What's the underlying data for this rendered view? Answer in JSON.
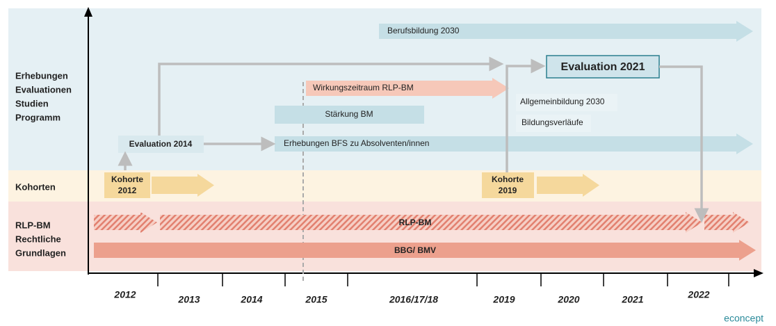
{
  "rows": [
    {
      "lines": [
        "Erhebungen",
        "Evaluationen",
        "Studien",
        "Programm"
      ]
    },
    {
      "lines": [
        "Kohorten"
      ]
    },
    {
      "lines": [
        "RLP-BM",
        "Rechtliche",
        "Grundlagen"
      ]
    }
  ],
  "years": [
    "2012",
    "2013",
    "2014",
    "2015",
    "2016/17/18",
    "2019",
    "2020",
    "2021",
    "2022"
  ],
  "items": {
    "berufsbildung": "Berufsbildung 2030",
    "evaluation_2021": "Evaluation 2021",
    "wirkungszeitraum": "Wirkungszeitraum RLP-BM",
    "allgemeinbildung": "Allgemeinbildung 2030",
    "staerkung": "Stärkung BM",
    "bildungsverlaeufe": "Bildungsverläufe",
    "evaluation_2014": "Evaluation 2014",
    "erhebungen_bfs": "Erhebungen BFS zu Absolventen/innen",
    "kohorte_2012": [
      "Kohorte",
      "2012"
    ],
    "kohorte_2019": [
      "Kohorte",
      "2019"
    ],
    "rlp_bm": "RLP-BM",
    "bbg_bmv": "BBG/ BMV"
  },
  "brand": "econcept"
}
